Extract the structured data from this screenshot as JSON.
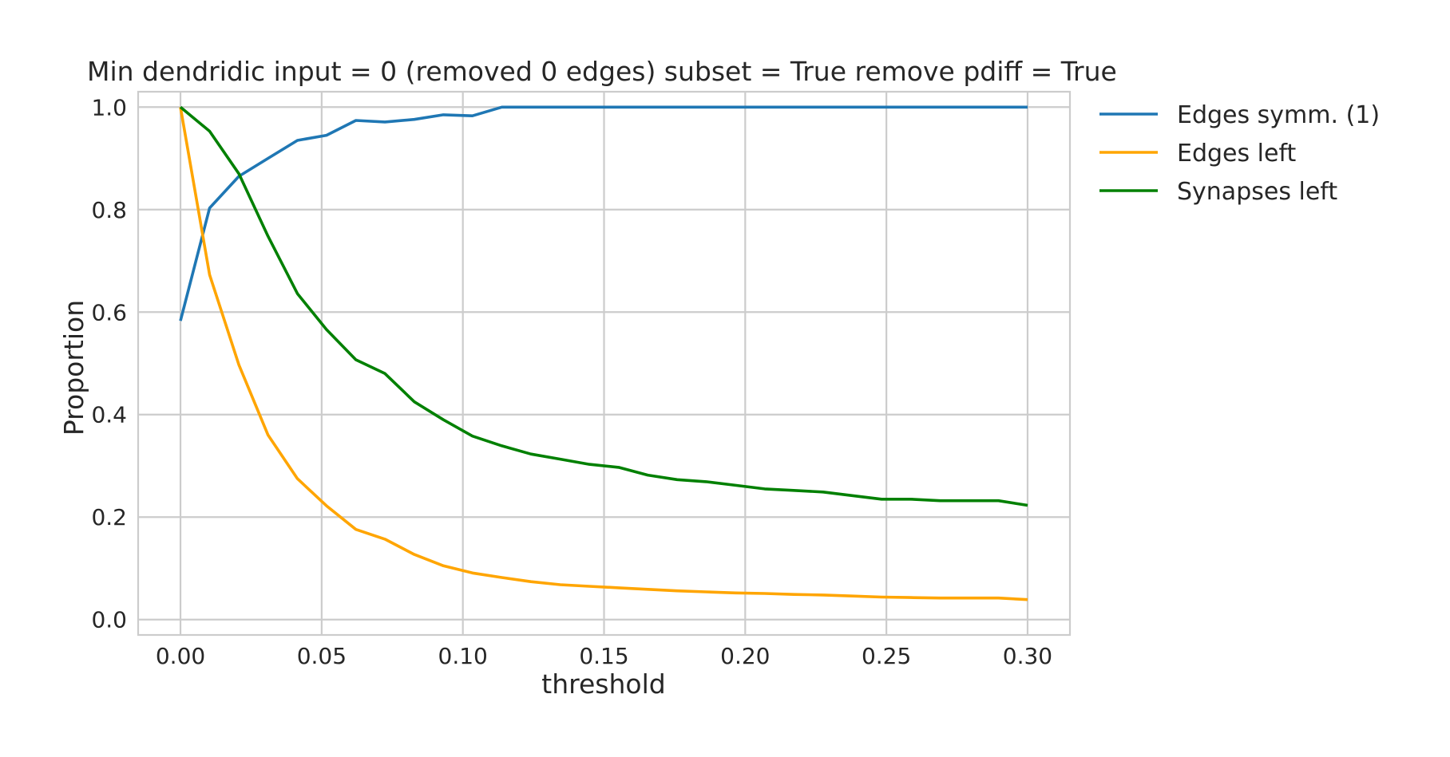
{
  "chart_data": {
    "type": "line",
    "title": "Min dendridic input = 0 (removed 0 edges) subset = True remove pdiff = True",
    "xlabel": "threshold",
    "ylabel": "Proportion",
    "xlim": [
      -0.015,
      0.315
    ],
    "ylim": [
      -0.03,
      1.03
    ],
    "grid": true,
    "legend_position": "outside right, top",
    "x_ticks": [
      "0.00",
      "0.05",
      "0.10",
      "0.15",
      "0.20",
      "0.25",
      "0.30"
    ],
    "y_ticks": [
      "0.0",
      "0.2",
      "0.4",
      "0.6",
      "0.8",
      "1.0"
    ],
    "x": [
      0.0,
      0.0103,
      0.0207,
      0.031,
      0.0414,
      0.0517,
      0.0621,
      0.0724,
      0.0828,
      0.0931,
      0.1034,
      0.1138,
      0.1241,
      0.1345,
      0.1448,
      0.1552,
      0.1655,
      0.1759,
      0.1862,
      0.1966,
      0.2069,
      0.2172,
      0.2276,
      0.2379,
      0.2483,
      0.2586,
      0.269,
      0.2793,
      0.2897,
      0.3
    ],
    "series": [
      {
        "name": "Edges symm. (1)",
        "color": "#1f77b4",
        "values": [
          0.583,
          0.803,
          0.865,
          0.9,
          0.935,
          0.945,
          0.974,
          0.971,
          0.976,
          0.985,
          0.983,
          1.0,
          1.0,
          1.0,
          1.0,
          1.0,
          1.0,
          1.0,
          1.0,
          1.0,
          1.0,
          1.0,
          1.0,
          1.0,
          1.0,
          1.0,
          1.0,
          1.0,
          1.0,
          1.0
        ]
      },
      {
        "name": "Edges left",
        "color": "#ffa500",
        "values": [
          1.0,
          0.673,
          0.497,
          0.36,
          0.275,
          0.222,
          0.176,
          0.157,
          0.127,
          0.105,
          0.091,
          0.082,
          0.074,
          0.068,
          0.065,
          0.062,
          0.059,
          0.056,
          0.054,
          0.052,
          0.051,
          0.049,
          0.048,
          0.046,
          0.044,
          0.043,
          0.042,
          0.042,
          0.042,
          0.039
        ]
      },
      {
        "name": "Synapses left",
        "color": "#008000",
        "values": [
          1.0,
          0.953,
          0.87,
          0.748,
          0.636,
          0.566,
          0.507,
          0.48,
          0.425,
          0.39,
          0.358,
          0.339,
          0.323,
          0.313,
          0.303,
          0.297,
          0.282,
          0.273,
          0.269,
          0.262,
          0.255,
          0.252,
          0.249,
          0.242,
          0.235,
          0.235,
          0.232,
          0.232,
          0.232,
          0.223
        ]
      }
    ]
  }
}
